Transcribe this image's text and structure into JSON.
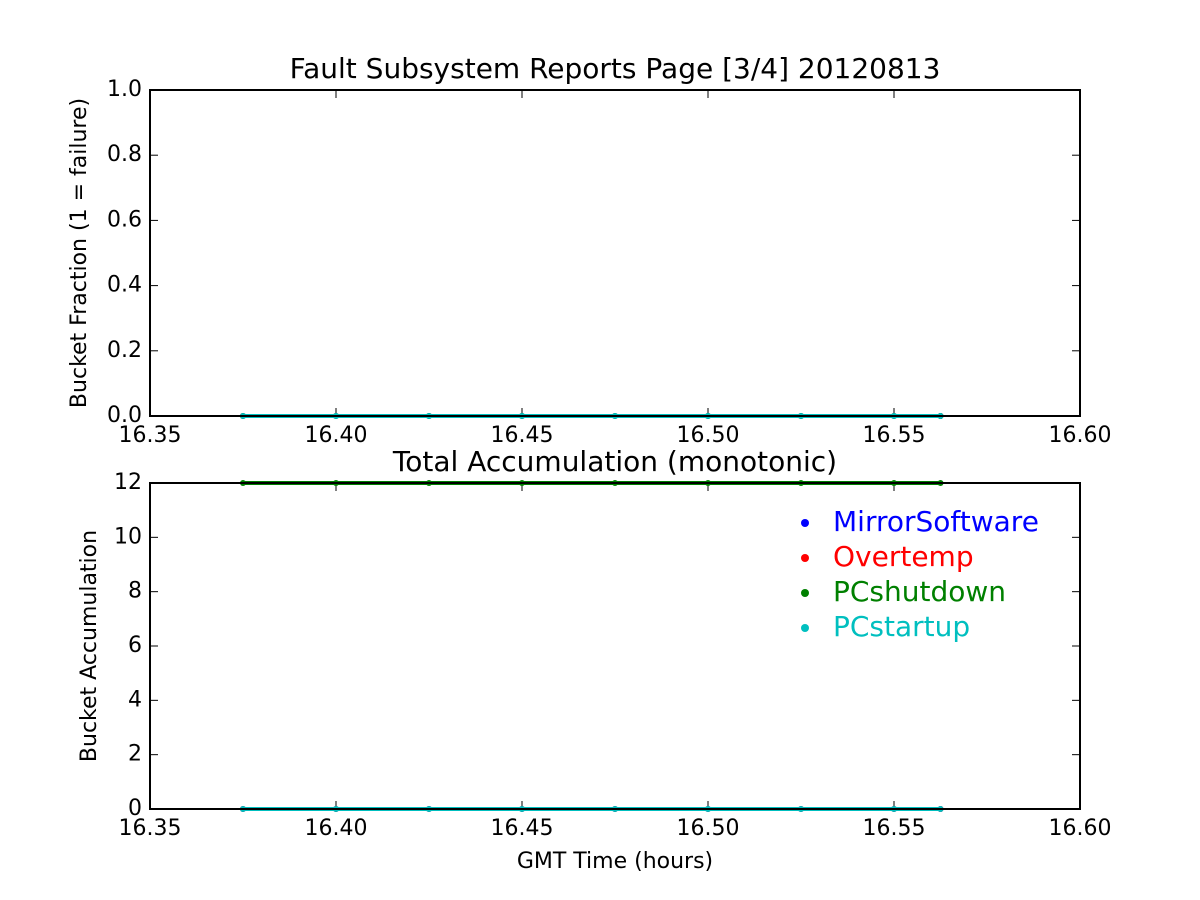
{
  "chart_data": [
    {
      "type": "line",
      "title": "Fault Subsystem Reports Page [3/4] 20120813",
      "ylabel": "Bucket Fraction (1 = failure)",
      "x": [
        16.375,
        16.4,
        16.425,
        16.45,
        16.475,
        16.5,
        16.525,
        16.55,
        16.5625
      ],
      "series": [
        {
          "color": "#0000ff",
          "values": [
            0,
            0,
            0,
            0,
            0,
            0,
            0,
            0,
            0
          ]
        },
        {
          "color": "#ff0000",
          "values": [
            0,
            0,
            0,
            0,
            0,
            0,
            0,
            0,
            0
          ]
        },
        {
          "color": "#008000",
          "values": [
            0,
            0,
            0,
            0,
            0,
            0,
            0,
            0,
            0
          ]
        },
        {
          "color": "#00bfbf",
          "values": [
            0,
            0,
            0,
            0,
            0,
            0,
            0,
            0,
            0
          ]
        }
      ],
      "xlim": [
        16.35,
        16.6
      ],
      "xticks": [
        16.35,
        {
          "value": 16.4,
          "label": "16.40"
        },
        16.45,
        {
          "value": 16.5,
          "label": "16.50"
        },
        16.55,
        {
          "value": 16.6,
          "label": "16.60"
        }
      ],
      "ylim": [
        0,
        1
      ],
      "yticks": [
        {
          "value": 0,
          "label": "0.0"
        },
        0.2,
        0.4,
        0.6,
        0.8,
        {
          "value": 1,
          "label": "1.0"
        }
      ],
      "grid": false
    },
    {
      "type": "line",
      "title": "Total Accumulation (monotonic)",
      "ylabel": "Bucket Accumulation",
      "xlabel": "GMT Time (hours)",
      "x": [
        16.375,
        16.4,
        16.425,
        16.45,
        16.475,
        16.5,
        16.525,
        16.55,
        16.5625
      ],
      "series": [
        {
          "name": "MirrorSoftware",
          "color": "#0000ff",
          "values": [
            0,
            0,
            0,
            0,
            0,
            0,
            0,
            0,
            0
          ]
        },
        {
          "name": "Overtemp",
          "color": "#ff0000",
          "values": [
            0,
            0,
            0,
            0,
            0,
            0,
            0,
            0,
            0
          ]
        },
        {
          "name": "PCshutdown",
          "color": "#008000",
          "values": [
            12,
            12,
            12,
            12,
            12,
            12,
            12,
            12,
            12
          ]
        },
        {
          "name": "PCstartup",
          "color": "#00bfbf",
          "values": [
            0,
            0,
            0,
            0,
            0,
            0,
            0,
            0,
            0
          ]
        }
      ],
      "xlim": [
        16.35,
        16.6
      ],
      "xticks": [
        16.35,
        {
          "value": 16.4,
          "label": "16.40"
        },
        16.45,
        {
          "value": 16.5,
          "label": "16.50"
        },
        16.55,
        {
          "value": 16.6,
          "label": "16.60"
        }
      ],
      "ylim": [
        0,
        12
      ],
      "yticks": [
        0,
        2,
        4,
        6,
        8,
        10,
        12
      ],
      "grid": false,
      "legend": "upper right"
    }
  ]
}
